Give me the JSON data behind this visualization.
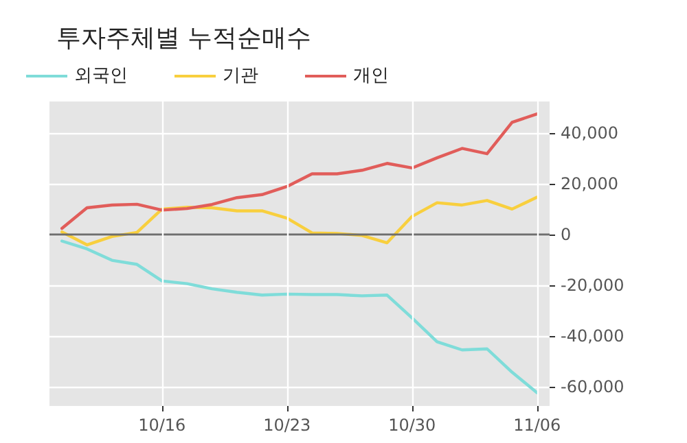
{
  "chart_data": {
    "type": "line",
    "title": "투자주체별 누적순매수",
    "categories": [
      null,
      null,
      null,
      null,
      "10/16",
      null,
      null,
      null,
      null,
      "10/23",
      null,
      null,
      null,
      null,
      "10/30",
      null,
      null,
      null,
      null,
      "11/06"
    ],
    "series": [
      {
        "name": "외국인",
        "color": "#7fdcd9",
        "values": [
          -2500,
          -5600,
          -10100,
          -11700,
          -18200,
          -19300,
          -21300,
          -22700,
          -23800,
          -23400,
          -23600,
          -23600,
          -24100,
          -23800,
          -32800,
          -42200,
          -45400,
          -45000,
          -54200,
          -62300
        ]
      },
      {
        "name": "기관",
        "color": "#f8cf3e",
        "values": [
          1100,
          -4000,
          -700,
          900,
          10100,
          10800,
          10600,
          9400,
          9400,
          6500,
          700,
          500,
          -300,
          -3200,
          7200,
          12600,
          11700,
          13500,
          10100,
          14800
        ]
      },
      {
        "name": "개인",
        "color": "#e15d5a",
        "values": [
          2500,
          10600,
          11700,
          12000,
          9700,
          10300,
          11900,
          14600,
          15800,
          19000,
          24000,
          24000,
          25400,
          28100,
          26300,
          30300,
          34000,
          31900,
          44300,
          47600
        ]
      }
    ],
    "ylim": [
      -67500,
      52500
    ],
    "yticks": [
      {
        "value": -60000,
        "label": "-60,000"
      },
      {
        "value": -40000,
        "label": "-40,000"
      },
      {
        "value": -20000,
        "label": "-20,000"
      },
      0,
      {
        "value": 20000,
        "label": "20,000"
      },
      {
        "value": 40000,
        "label": "40,000"
      }
    ],
    "ref_lines": [
      {
        "axis": "y",
        "value": 0,
        "color": "#6e6e6e"
      }
    ],
    "grid": true,
    "legend": "top left",
    "marker": "none",
    "line_style": "solid"
  }
}
